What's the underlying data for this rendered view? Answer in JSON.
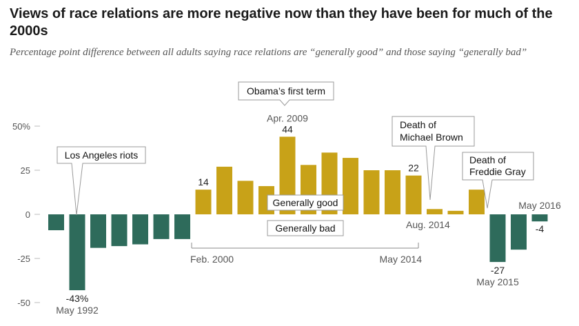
{
  "title": "Views of race relations are more negative now than they have been for much of the 2000s",
  "subtitle": "Percentage point difference between all adults saying race relations are “generally good” and those saying “generally bad”",
  "chart_data": {
    "type": "bar",
    "ylim": [
      -50,
      50
    ],
    "yticks": [
      "50%",
      "25",
      "0",
      "-25",
      "-50"
    ],
    "values": [
      -9,
      -43,
      -19,
      -18,
      -17,
      -14,
      -14,
      14,
      27,
      19,
      16,
      44,
      28,
      35,
      32,
      25,
      25,
      22,
      3,
      2,
      14,
      -27,
      -20,
      -4
    ],
    "colors": {
      "positive": "#c8a218",
      "negative": "#2e6b5b"
    },
    "data_labels": [
      {
        "index": 1,
        "text": "-43%",
        "sub": "May 1992"
      },
      {
        "index": 7,
        "text": "14"
      },
      {
        "index": 11,
        "text": "44",
        "above": "Apr. 2009"
      },
      {
        "index": 17,
        "text": "22"
      },
      {
        "index": 21,
        "text": "-27",
        "sub": "May 2015"
      },
      {
        "index": 23,
        "text": "-4",
        "above": "May 2016"
      }
    ],
    "annotations": {
      "la_riots": "Los Angeles riots",
      "obama": "Obama’s first term",
      "brown_line1": "Death of",
      "brown_line2": "Michael Brown",
      "gray_line1": "Death of",
      "gray_line2": "Freddie Gray",
      "good": "Generally good",
      "bad": "Generally bad",
      "aug2014": "Aug. 2014",
      "feb2000": "Feb. 2000",
      "may2014": "May 2014"
    }
  }
}
